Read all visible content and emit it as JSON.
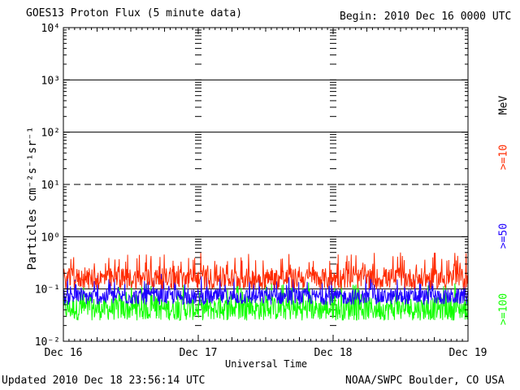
{
  "header": {
    "title": "GOES13 Proton Flux (5 minute data)",
    "begin": "Begin: 2010 Dec 16 0000 UTC"
  },
  "footer": {
    "updated": "Updated 2010 Dec 18 23:56:14 UTC",
    "credit": "NOAA/SWPC Boulder, CO USA"
  },
  "axes": {
    "xlabel": "Universal Time",
    "ylabel": "Particles cm⁻²s⁻¹sr⁻¹"
  },
  "legend": {
    "unit": "MeV",
    "items": [
      {
        "label": ">=10",
        "color": "#ff2a00"
      },
      {
        "label": ">=50",
        "color": "#1f00ff"
      },
      {
        "label": ">=100",
        "color": "#11ff00"
      }
    ]
  },
  "chart_data": {
    "type": "line",
    "title": "GOES13 Proton Flux (5 minute data)",
    "xlabel": "Universal Time",
    "ylabel": "Particles cm⁻²s⁻¹sr⁻¹",
    "yscale": "log",
    "ylim": [
      0.01,
      10000
    ],
    "xlim": [
      "2010-12-16 00:00",
      "2010-12-19 00:00"
    ],
    "x_ticks": [
      "Dec 16",
      "Dec 17",
      "Dec 18",
      "Dec 19"
    ],
    "y_ticks": [
      "10⁻²",
      "10⁻¹",
      "10⁰",
      "10¹",
      "10²",
      "10³",
      "10⁴"
    ],
    "grid": "horizontal lines at decades",
    "reference_lines": [
      {
        "value": 10,
        "style": "dashed"
      }
    ],
    "series": [
      {
        "name": ">=10 MeV",
        "color": "#ff2a00",
        "typical_min": 0.1,
        "typical_max": 0.25
      },
      {
        "name": ">=50 MeV",
        "color": "#1f00ff",
        "typical_min": 0.05,
        "typical_max": 0.1
      },
      {
        "name": ">=100 MeV",
        "color": "#11ff00",
        "typical_min": 0.025,
        "typical_max": 0.07
      }
    ]
  }
}
